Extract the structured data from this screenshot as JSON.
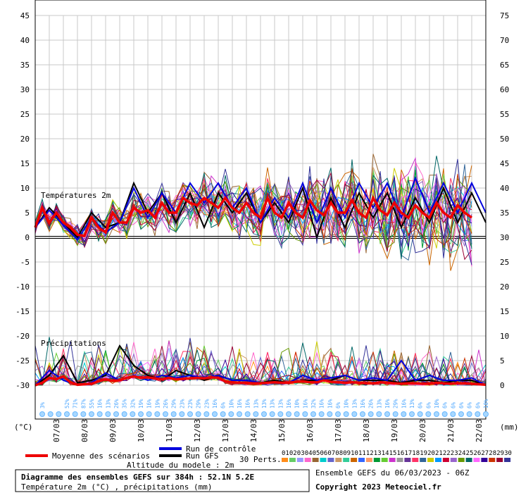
{
  "chart_data": {
    "type": "line",
    "series_labels": {
      "temp": "Températures 2m",
      "precip": "Précipitations"
    },
    "left_axis": {
      "unit": "(°C)",
      "ticks": [
        "45",
        "40",
        "35",
        "30",
        "25",
        "20",
        "15",
        "10",
        "5",
        "0",
        "-5",
        "-10",
        "-15",
        "-20",
        "-25",
        "-30"
      ],
      "range": [
        -30,
        45
      ]
    },
    "right_axis": {
      "unit": "(mm)",
      "ticks": [
        "75",
        "70",
        "65",
        "60",
        "55",
        "50",
        "45",
        "40",
        "35",
        "30",
        "25",
        "20",
        "15",
        "10",
        "5",
        "0"
      ],
      "range": [
        0,
        75
      ]
    },
    "x_dates": [
      "07/03",
      "08/03",
      "09/03",
      "10/03",
      "11/03",
      "12/03",
      "13/03",
      "14/03",
      "15/03",
      "16/03",
      "17/03",
      "18/03",
      "19/03",
      "20/03",
      "21/03",
      "22/03"
    ],
    "x_range_hours": [
      0,
      384
    ],
    "probabilities": [
      "3%",
      "",
      "",
      "52%",
      "71%",
      "87%",
      "55%",
      "16%",
      "13%",
      "26%",
      "35%",
      "32%",
      "19%",
      "16%",
      "19%",
      "26%",
      "29%",
      "23%",
      "23%",
      "29%",
      "23%",
      "16%",
      "6%",
      "10%",
      "16%",
      "16%",
      "13%",
      "13%",
      "13%",
      "13%",
      "16%",
      "10%",
      "16%",
      "32%",
      "16%",
      "16%",
      "6%",
      "10%",
      "13%",
      "16%",
      "26%",
      "13%",
      "16%",
      "29%",
      "16%",
      "13%",
      "6%",
      "6%",
      "10%",
      "6%",
      "6%",
      "6%",
      "6%",
      "6%",
      "10%"
    ],
    "series": [
      {
        "name": "Moyenne des scénarios",
        "x": [
          0,
          6,
          12,
          18,
          24,
          30,
          36,
          42,
          48,
          54,
          60,
          66,
          72,
          78,
          84,
          90,
          96,
          102,
          108,
          114,
          120,
          126,
          132,
          138,
          144,
          150,
          156,
          162,
          168,
          174,
          180,
          186,
          192,
          198,
          204,
          210,
          216,
          222,
          228,
          234,
          240,
          246,
          252,
          258,
          264,
          270,
          276,
          282,
          288,
          294,
          300,
          306,
          312,
          318,
          324,
          330,
          336,
          342,
          348,
          354,
          360,
          366,
          372,
          378,
          384
        ],
        "temp": [
          2,
          6,
          3,
          5,
          3,
          2,
          0.5,
          0.3,
          4,
          2,
          1,
          5,
          3,
          3,
          6,
          5,
          5.5,
          4,
          7,
          5,
          5,
          8,
          7,
          6.5,
          8,
          7,
          6,
          8,
          6,
          5,
          7,
          5,
          4,
          8,
          5,
          4,
          7,
          5,
          4,
          7.5,
          5.5,
          4.5,
          7,
          5,
          5,
          7.5,
          5,
          4,
          8,
          5.5,
          4.5,
          7,
          5,
          4,
          6.5,
          5,
          4,
          7,
          5,
          4,
          6.5,
          5,
          4
        ],
        "precip": [
          0,
          0.5,
          1.5,
          1.2,
          1.8,
          0.6,
          0.1,
          0.2,
          0.3,
          0.8,
          1.2,
          0.9,
          1,
          1.5,
          1.8,
          1.5,
          1.6,
          1.4,
          1.2,
          1.5,
          1.2,
          1.3,
          1.4,
          1.5,
          1.4,
          1.6,
          1.5,
          0.8,
          0.6,
          0.5,
          0.5,
          0.4,
          0.4,
          0.5,
          0.6,
          0.5,
          0.5,
          0.7,
          0.8,
          0.6,
          0.6,
          1,
          0.7,
          0.6,
          0.5,
          0.6,
          0.5,
          0.4,
          0.4,
          0.6,
          0.5,
          0.4,
          0.3,
          0.4,
          0.4,
          0.3,
          0.3,
          0.5,
          0.4,
          0.3,
          0.4,
          0.4,
          0.3,
          0.2,
          0.1
        ]
      },
      {
        "name": "Run de contrôle",
        "x": [
          0,
          12,
          24,
          36,
          48,
          60,
          72,
          84,
          96,
          108,
          120,
          132,
          144,
          156,
          168,
          180,
          192,
          204,
          216,
          228,
          240,
          252,
          264,
          276,
          288,
          300,
          312,
          324,
          336,
          348,
          360,
          372,
          384
        ],
        "temp": [
          2,
          5.5,
          2.5,
          -0.5,
          4,
          1,
          3,
          10,
          4,
          9,
          5,
          11,
          7,
          11,
          6,
          10,
          3,
          8,
          4,
          11,
          3,
          10,
          4,
          11,
          6,
          11,
          4,
          12,
          5,
          11,
          5,
          11,
          5
        ],
        "precip": [
          0,
          3,
          1,
          0,
          0.5,
          2.5,
          1,
          2,
          1,
          2,
          1.5,
          2,
          1.5,
          2,
          1,
          1,
          0.5,
          0.5,
          0.5,
          2,
          1,
          1.5,
          2,
          1,
          1.5,
          1,
          5,
          1,
          2,
          1,
          1,
          1.5,
          0
        ]
      },
      {
        "name": "Run GFS",
        "x": [
          0,
          12,
          24,
          36,
          48,
          60,
          72,
          84,
          96,
          108,
          120,
          132,
          144,
          156,
          168,
          180,
          192,
          204,
          216,
          228,
          240,
          252,
          264,
          276,
          288,
          300,
          312,
          324,
          336,
          348,
          360,
          372,
          384
        ],
        "temp": [
          2,
          6,
          3,
          0,
          5,
          2,
          3,
          11,
          5,
          9,
          3,
          9,
          2,
          9,
          5,
          9,
          3,
          7,
          3,
          10,
          0,
          8,
          2,
          9,
          4,
          9,
          2,
          8,
          3,
          10,
          3,
          9,
          3
        ],
        "precip": [
          0,
          2,
          6,
          0.5,
          1,
          2,
          8,
          4,
          2,
          1,
          3,
          2,
          1,
          2,
          1,
          1,
          0.5,
          1,
          0.5,
          1,
          1,
          1,
          2,
          1,
          1,
          1,
          0.5,
          1,
          1,
          0.5,
          1,
          1,
          0
        ]
      }
    ],
    "members_label": "30 Perts.",
    "members": [
      "01",
      "02",
      "03",
      "04",
      "05",
      "06",
      "07",
      "08",
      "09",
      "10",
      "11",
      "12",
      "13",
      "14",
      "15",
      "16",
      "17",
      "18",
      "19",
      "20",
      "21",
      "22",
      "23",
      "24",
      "25",
      "26",
      "27",
      "28",
      "29",
      "30"
    ],
    "member_colors": [
      "#ff8c1a",
      "#66cc66",
      "#9999ff",
      "#ff66cc",
      "#996633",
      "#00cccc",
      "#6666cc",
      "#cc9966",
      "#33cc99",
      "#cc6600",
      "#3366ff",
      "#ff9966",
      "#009933",
      "#66cc33",
      "#cc33cc",
      "#999999",
      "#663399",
      "#ff3366",
      "#336699",
      "#cccc00",
      "#0099ff",
      "#cc0033",
      "#9966cc",
      "#669900",
      "#006666",
      "#ff66ff",
      "#330099",
      "#cc3300",
      "#990033",
      "#333399"
    ]
  },
  "legend": {
    "mean_label": "Moyenne des scénarios",
    "control_label": "Run de contrôle",
    "gfs_label": "Run GFS",
    "altitude": "Altitude du modele : 2m",
    "mean_color": "#ee0000",
    "control_color": "#0000dd",
    "gfs_color": "#000000"
  },
  "footer": {
    "title": "Diagramme des ensembles GEFS sur 384h : 52.1N 5.2E",
    "subtitle": "Température 2m (°C) , précipitations (mm)",
    "run_info": "Ensemble GEFS du 06/03/2023 - 06Z",
    "copyright": "Copyright 2023 Meteociel.fr"
  }
}
